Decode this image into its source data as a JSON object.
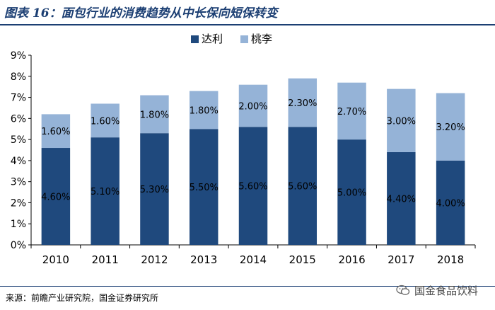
{
  "figure": {
    "title": "图表 16：面包行业的消费趋势从中长保向短保转变",
    "source": "来源：前瞻产业研究院，国金证券研究所",
    "watermark": "国金食品饮料"
  },
  "chart_data": {
    "type": "bar",
    "stacked": true,
    "categories": [
      "2010",
      "2011",
      "2012",
      "2013",
      "2014",
      "2015",
      "2016",
      "2017",
      "2018"
    ],
    "series": [
      {
        "name": "达利",
        "color": "#1f497d",
        "values": [
          4.6,
          5.1,
          5.3,
          5.5,
          5.6,
          5.6,
          5.0,
          4.4,
          4.0
        ],
        "labels": [
          "4.60%",
          "5.10%",
          "5.30%",
          "5.50%",
          "5.60%",
          "5.60%",
          "5.00%",
          "4.40%",
          "4.00%"
        ]
      },
      {
        "name": "桃李",
        "color": "#95b3d7",
        "values": [
          1.6,
          1.6,
          1.8,
          1.8,
          2.0,
          2.3,
          2.7,
          3.0,
          3.2
        ],
        "labels": [
          "1.60%",
          "1.60%",
          "1.80%",
          "1.80%",
          "2.00%",
          "2.30%",
          "2.70%",
          "3.00%",
          "3.20%"
        ]
      }
    ],
    "ylim": [
      0,
      9
    ],
    "yticks": [
      "0%",
      "1%",
      "2%",
      "3%",
      "4%",
      "5%",
      "6%",
      "7%",
      "8%",
      "9%"
    ],
    "grid": false,
    "legend_position": "top-center",
    "title": "",
    "xlabel": "",
    "ylabel": ""
  }
}
